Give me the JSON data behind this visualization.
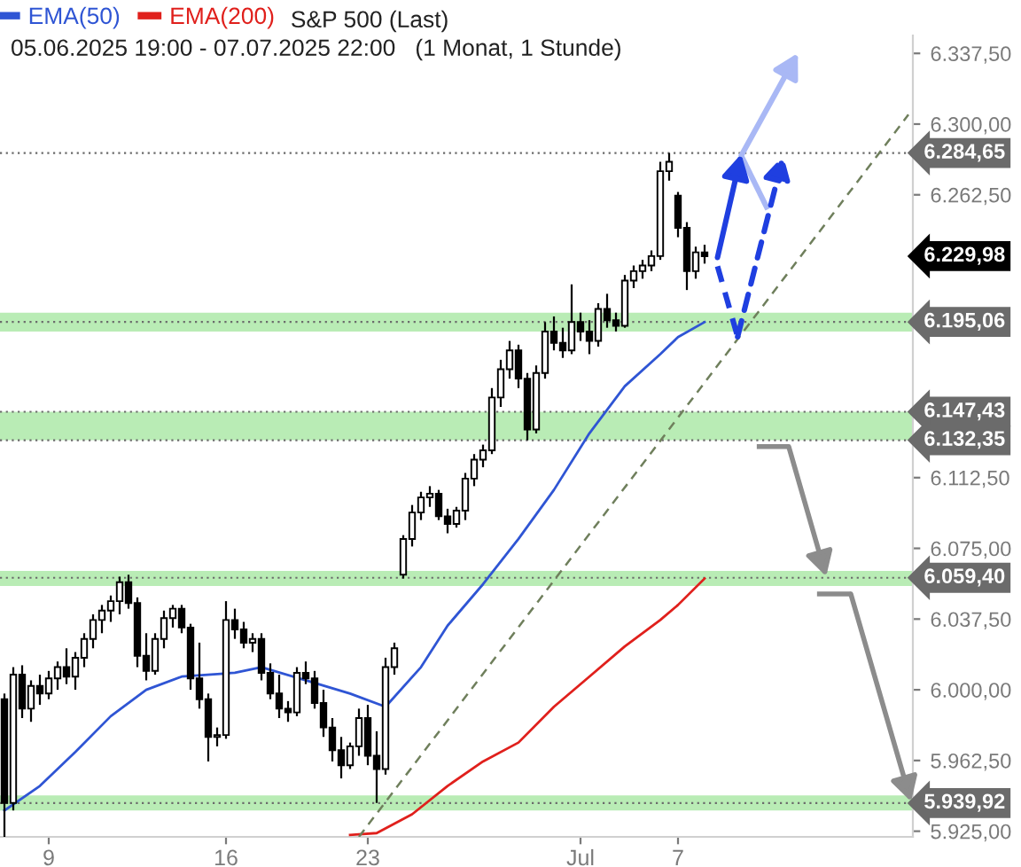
{
  "chart_data": {
    "type": "candlestick",
    "title": "S&P 500 (Last)",
    "subtitle": "05.06.2025 19:00 - 07.07.2025 22:00   (1 Monat, 1 Stunde)",
    "categories": [
      null,
      null,
      null,
      null,
      null,
      "9",
      null,
      null,
      null,
      null,
      null,
      null,
      null,
      null,
      null,
      null,
      null,
      null,
      null,
      null,
      null,
      null,
      null,
      null,
      null,
      "16",
      null,
      null,
      null,
      null,
      null,
      null,
      null,
      null,
      null,
      null,
      null,
      null,
      null,
      null,
      null,
      "23",
      null,
      null,
      null,
      null,
      null,
      null,
      null,
      null,
      null,
      null,
      null,
      null,
      null,
      null,
      null,
      null,
      null,
      null,
      null,
      null,
      null,
      null,
      null,
      "Jul",
      null,
      null,
      null,
      null,
      null,
      null,
      null,
      null,
      null,
      null,
      "7",
      null,
      null,
      null,
      null,
      null,
      null,
      null,
      null,
      null,
      null,
      null,
      null,
      null,
      null,
      null,
      null,
      null,
      null,
      null,
      null,
      null,
      null,
      null,
      null,
      null,
      null
    ],
    "ohlc": [
      [
        5995,
        5998,
        5922,
        5940
      ],
      [
        5940,
        6012,
        5936,
        6008
      ],
      [
        6008,
        6013,
        5985,
        5990
      ],
      [
        5990,
        6005,
        5983,
        6002
      ],
      [
        6002,
        6008,
        5992,
        5998
      ],
      [
        5998,
        6010,
        5995,
        6006
      ],
      [
        6006,
        6015,
        6000,
        6012
      ],
      [
        6012,
        6022,
        6003,
        6007
      ],
      [
        6007,
        6020,
        6000,
        6017
      ],
      [
        6017,
        6030,
        6012,
        6027
      ],
      [
        6027,
        6040,
        6022,
        6037
      ],
      [
        6037,
        6045,
        6030,
        6042
      ],
      [
        6042,
        6050,
        6036,
        6047
      ],
      [
        6047,
        6060,
        6040,
        6057
      ],
      [
        6057,
        6061,
        6043,
        6046
      ],
      [
        6046,
        6049,
        6012,
        6018
      ],
      [
        6018,
        6030,
        6005,
        6010
      ],
      [
        6010,
        6030,
        6008,
        6027
      ],
      [
        6027,
        6042,
        6022,
        6038
      ],
      [
        6038,
        6045,
        6033,
        6043
      ],
      [
        6043,
        6045,
        6030,
        6033
      ],
      [
        6033,
        6035,
        6000,
        6006
      ],
      [
        6006,
        6025,
        5990,
        5995
      ],
      [
        5995,
        5998,
        5962,
        5975
      ],
      [
        5975,
        5980,
        5970,
        5976
      ],
      [
        5976,
        6047,
        5974,
        6037
      ],
      [
        6037,
        6043,
        6027,
        6032
      ],
      [
        6032,
        6036,
        6022,
        6025
      ],
      [
        6025,
        6030,
        6020,
        6027
      ],
      [
        6027,
        6030,
        6005,
        6009
      ],
      [
        6009,
        6014,
        5995,
        5998
      ],
      [
        5998,
        6008,
        5985,
        5990
      ],
      [
        5990,
        5994,
        5983,
        5988
      ],
      [
        5988,
        6012,
        5986,
        6009
      ],
      [
        6009,
        6015,
        6003,
        6006
      ],
      [
        6006,
        6010,
        5990,
        5993
      ],
      [
        5993,
        6000,
        5975,
        5980
      ],
      [
        5980,
        5985,
        5962,
        5968
      ],
      [
        5968,
        5975,
        5953,
        5960
      ],
      [
        5960,
        5972,
        5958,
        5970
      ],
      [
        5970,
        5990,
        5965,
        5985
      ],
      [
        5985,
        5992,
        5960,
        5965
      ],
      [
        5965,
        5978,
        5940,
        5958
      ],
      [
        5958,
        6017,
        5955,
        6012
      ],
      [
        6012,
        6025,
        6008,
        6022
      ],
      [
        6061,
        6082,
        6059,
        6080
      ],
      [
        6080,
        6098,
        6076,
        6094
      ],
      [
        6094,
        6105,
        6090,
        6102
      ],
      [
        6102,
        6108,
        6097,
        6104
      ],
      [
        6104,
        6106,
        6090,
        6092
      ],
      [
        6092,
        6096,
        6083,
        6088
      ],
      [
        6088,
        6097,
        6086,
        6095
      ],
      [
        6095,
        6115,
        6090,
        6112
      ],
      [
        6112,
        6125,
        6108,
        6122
      ],
      [
        6122,
        6130,
        6118,
        6127
      ],
      [
        6127,
        6160,
        6125,
        6155
      ],
      [
        6155,
        6175,
        6150,
        6170
      ],
      [
        6170,
        6185,
        6165,
        6180
      ],
      [
        6180,
        6183,
        6160,
        6165
      ],
      [
        6165,
        6168,
        6132.35,
        6138
      ],
      [
        6138,
        6172,
        6136,
        6168
      ],
      [
        6168,
        6195,
        6165,
        6190
      ],
      [
        6190,
        6198,
        6180,
        6184
      ],
      [
        6184,
        6192,
        6176,
        6180
      ],
      [
        6180,
        6215,
        6178,
        6195
      ],
      [
        6195,
        6200,
        6185,
        6190
      ],
      [
        6190,
        6196,
        6178,
        6185
      ],
      [
        6185,
        6205,
        6182,
        6202
      ],
      [
        6202,
        6210,
        6192,
        6196
      ],
      [
        6196,
        6200,
        6190,
        6193
      ],
      [
        6193,
        6220,
        6192,
        6217
      ],
      [
        6217,
        6225,
        6213,
        6222
      ],
      [
        6222,
        6228,
        6218,
        6225
      ],
      [
        6225,
        6233,
        6222,
        6230
      ],
      [
        6230,
        6280,
        6228,
        6275
      ],
      [
        6275,
        6284.65,
        6270,
        6280
      ],
      [
        6262,
        6264,
        6240,
        6245
      ],
      [
        6245,
        6248,
        6212,
        6222
      ],
      [
        6222,
        6235,
        6218,
        6232
      ],
      [
        6232,
        6236,
        6226,
        6229.98
      ],
      null,
      null,
      null,
      null,
      null,
      null,
      null,
      null,
      null,
      null,
      null,
      null,
      null,
      null,
      null,
      null,
      null,
      null,
      null,
      null,
      null,
      null,
      null
    ],
    "series": [
      {
        "name": "EMA(50)",
        "type": "line",
        "color": "#2f55d4",
        "values": [
          5936,
          null,
          null,
          null,
          5949,
          null,
          null,
          null,
          5967,
          null,
          null,
          null,
          5986,
          null,
          null,
          null,
          6000,
          null,
          null,
          null,
          6007,
          null,
          null,
          null,
          null,
          null,
          6009,
          null,
          null,
          6012,
          null,
          null,
          null,
          null,
          6005,
          null,
          null,
          null,
          null,
          5998,
          null,
          null,
          null,
          5991,
          null,
          null,
          null,
          6012,
          null,
          null,
          6034,
          null,
          null,
          null,
          6056,
          null,
          null,
          null,
          6080,
          null,
          null,
          null,
          6106,
          null,
          null,
          null,
          6136,
          null,
          null,
          null,
          6161,
          null,
          null,
          null,
          6178,
          null,
          6187,
          null,
          null,
          6195,
          null,
          null,
          null,
          null,
          null,
          null,
          null,
          null,
          null,
          null,
          null,
          null,
          null,
          null,
          null,
          null,
          null,
          null,
          null,
          null,
          null,
          null,
          null
        ]
      },
      {
        "name": "EMA(200)",
        "type": "line",
        "color": "#e0201c",
        "values": [
          null,
          null,
          null,
          null,
          null,
          null,
          null,
          null,
          null,
          null,
          null,
          null,
          null,
          null,
          null,
          null,
          null,
          null,
          null,
          null,
          null,
          null,
          null,
          null,
          null,
          null,
          null,
          null,
          null,
          null,
          null,
          null,
          null,
          null,
          null,
          null,
          null,
          null,
          null,
          5923,
          null,
          null,
          5924,
          null,
          null,
          null,
          5934,
          null,
          null,
          null,
          5949,
          null,
          null,
          null,
          5962,
          null,
          null,
          null,
          5972,
          null,
          null,
          null,
          5991,
          null,
          null,
          null,
          6007,
          null,
          null,
          null,
          6023,
          null,
          null,
          null,
          6037,
          null,
          6045,
          null,
          null,
          6059,
          null,
          null,
          null,
          null,
          null,
          null,
          null,
          null,
          null,
          null,
          null,
          null,
          null,
          null,
          null,
          null,
          null,
          null,
          null,
          null,
          null,
          null,
          null
        ]
      },
      {
        "type": "line",
        "color": "#6f7f5c",
        "line_style": "dashed",
        "values": [
          null,
          null,
          null,
          null,
          null,
          null,
          null,
          null,
          null,
          null,
          null,
          null,
          null,
          null,
          null,
          null,
          null,
          null,
          null,
          null,
          null,
          null,
          null,
          null,
          null,
          null,
          null,
          null,
          null,
          null,
          null,
          null,
          null,
          null,
          null,
          null,
          null,
          null,
          null,
          null,
          5922,
          null,
          null,
          null,
          null,
          null,
          null,
          null,
          null,
          null,
          null,
          null,
          null,
          null,
          null,
          null,
          null,
          null,
          null,
          null,
          null,
          null,
          null,
          null,
          null,
          null,
          null,
          null,
          null,
          null,
          null,
          null,
          null,
          null,
          null,
          null,
          null,
          null,
          null,
          null,
          null,
          null,
          null,
          null,
          null,
          null,
          null,
          null,
          null,
          null,
          null,
          null,
          null,
          null,
          null,
          null,
          null,
          null,
          null,
          null,
          null,
          null,
          6305
        ]
      }
    ],
    "ylim": [
      5922,
      6347
    ],
    "yticks": [
      {
        "value": 5925,
        "label": "5.925,00"
      },
      {
        "value": 5962.5,
        "label": "5.962,50"
      },
      {
        "value": 6000,
        "label": "6.000,00"
      },
      {
        "value": 6037.5,
        "label": "6.037,50"
      },
      {
        "value": 6075,
        "label": "6.075,00"
      },
      {
        "value": 6112.5,
        "label": "6.112,50"
      },
      {
        "value": 6262.5,
        "label": "6.262,50"
      },
      {
        "value": 6300,
        "label": "6.300,00"
      },
      {
        "value": 6337.5,
        "label": "6.337,50"
      }
    ],
    "bands": [
      {
        "axis": "y",
        "from": 6190,
        "to": 6200,
        "color": "#b9ecb5"
      },
      {
        "axis": "y",
        "from": 6132.35,
        "to": 6147.43,
        "color": "#b9ecb5"
      },
      {
        "axis": "y",
        "from": 6055,
        "to": 6063,
        "color": "#b9ecb5"
      },
      {
        "axis": "y",
        "from": 5936,
        "to": 5944,
        "color": "#b9ecb5"
      }
    ],
    "ref_lines": [
      {
        "axis": "y",
        "value": 6284.65,
        "label": "6.284,65",
        "color": "#6b6b6b",
        "line_style": "dotted"
      },
      {
        "axis": "y",
        "value": 6195.06,
        "label": "6.195,06",
        "color": "#6b6b6b",
        "line_style": "dotted"
      },
      {
        "axis": "y",
        "value": 6147.43,
        "label": "6.147,43",
        "color": "#6b6b6b",
        "line_style": "dotted"
      },
      {
        "axis": "y",
        "value": 6132.35,
        "label": "6.132,35",
        "color": "#6b6b6b",
        "line_style": "dotted"
      },
      {
        "axis": "y",
        "value": 6059.4,
        "label": "6.059,40",
        "color": "#6b6b6b",
        "line_style": "dotted"
      },
      {
        "axis": "y",
        "value": 5939.92,
        "label": "5.939,92",
        "color": "#6b6b6b",
        "line_style": "dotted"
      }
    ],
    "annotations": [
      "6.229,98"
    ],
    "legend": "top left",
    "grid": false
  }
}
